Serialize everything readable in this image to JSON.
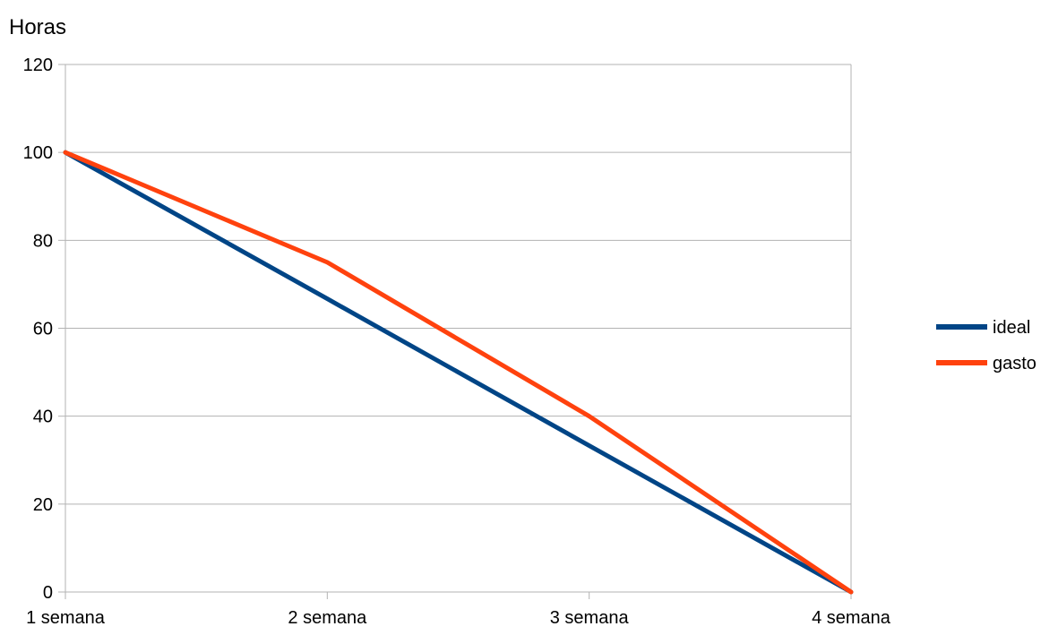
{
  "chart_data": {
    "type": "line",
    "title": "",
    "xlabel": "",
    "ylabel": "Horas",
    "categories": [
      "1 semana",
      "2 semana",
      "3 semana",
      "4 semana"
    ],
    "ylim": [
      0,
      120
    ],
    "yticks": [
      0,
      20,
      40,
      60,
      80,
      100,
      120
    ],
    "grid": true,
    "legend_position": "right",
    "series": [
      {
        "name": "ideal",
        "values": [
          100,
          66.7,
          33.3,
          0
        ],
        "color": "#004586"
      },
      {
        "name": "gasto",
        "values": [
          100,
          75,
          40,
          0
        ],
        "color": "#ff420e"
      }
    ]
  }
}
